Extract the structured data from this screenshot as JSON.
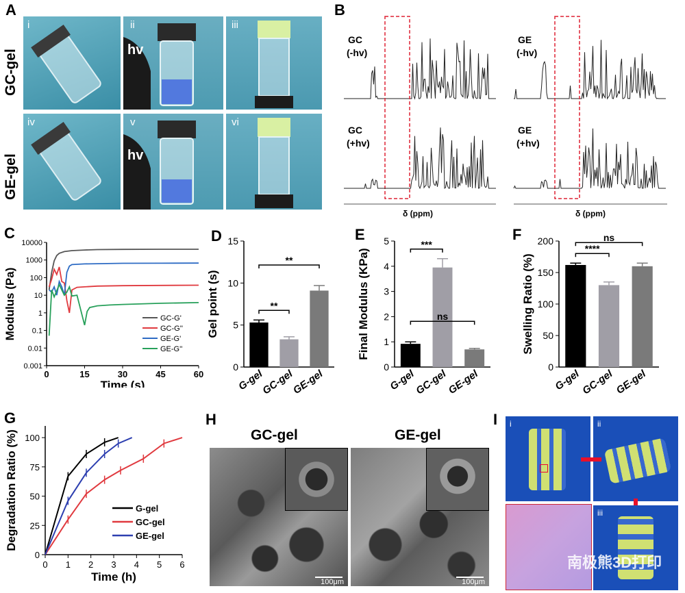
{
  "panels": {
    "A": {
      "label": "A",
      "row_labels": [
        "GC-gel",
        "GE-gel"
      ],
      "sub_labels": [
        "i",
        "ii",
        "iii",
        "iv",
        "v",
        "vi"
      ],
      "hv_label": "hv"
    },
    "B": {
      "label": "B",
      "spectra_labels": {
        "gc_minus": [
          "GC",
          "(-hv)"
        ],
        "gc_plus": [
          "GC",
          "(+hv)"
        ],
        "ge_minus": [
          "GE",
          "(-hv)"
        ],
        "ge_plus": [
          "GE",
          "(+hv)"
        ]
      },
      "xlabel": "δ (ppm)"
    },
    "H": {
      "label": "H",
      "titles": [
        "GC-gel",
        "GE-gel"
      ],
      "scale": "100μm"
    },
    "I": {
      "label": "I",
      "sub_labels": [
        "i",
        "ii",
        "iii"
      ]
    }
  },
  "watermark": "南极熊3D打印",
  "chart_data": [
    {
      "panel": "C",
      "type": "line",
      "xlabel": "Time (s)",
      "ylabel": "Modulus (Pa)",
      "xlim": [
        0,
        60
      ],
      "xticks": [
        0,
        15,
        30,
        45,
        60
      ],
      "yscale": "log",
      "yticks_labels": [
        "0.001",
        "0.01",
        "0.1",
        "1",
        "10",
        "100",
        "1000",
        "10000"
      ],
      "legend_placement": "bottom-right",
      "series": [
        {
          "name": "GC-G'",
          "color": "#555555",
          "x": [
            1,
            2,
            3,
            4,
            5,
            7,
            10,
            15,
            20,
            30,
            45,
            60
          ],
          "y": [
            20,
            200,
            900,
            1800,
            2400,
            3000,
            3400,
            3700,
            3900,
            4000,
            4100,
            4100
          ]
        },
        {
          "name": "GC-G''",
          "color": "#e0393e",
          "x": [
            1,
            2,
            3,
            4,
            5,
            6,
            7,
            8,
            9,
            10,
            12,
            15,
            20,
            30,
            45,
            60
          ],
          "y": [
            30,
            80,
            300,
            150,
            400,
            60,
            50,
            5,
            1,
            20,
            28,
            30,
            33,
            35,
            36,
            37
          ]
        },
        {
          "name": "GE-G'",
          "color": "#2d6bc4",
          "x": [
            1,
            2,
            3,
            4,
            5,
            6,
            7,
            8,
            9,
            10,
            15,
            20,
            30,
            45,
            60
          ],
          "y": [
            20,
            15,
            30,
            10,
            60,
            30,
            10,
            200,
            450,
            550,
            600,
            620,
            650,
            660,
            670
          ]
        },
        {
          "name": "GE-G''",
          "color": "#27a05a",
          "x": [
            1,
            2,
            3,
            5,
            7,
            8,
            9,
            10,
            12,
            15,
            16,
            17,
            20,
            25,
            30,
            45,
            60
          ],
          "y": [
            0.05,
            20,
            8,
            40,
            10,
            15,
            30,
            9,
            10,
            0.2,
            1.2,
            2,
            2.5,
            2.8,
            3,
            3.5,
            3.8
          ]
        }
      ]
    },
    {
      "panel": "D",
      "type": "bar",
      "categories": [
        "G-gel",
        "GC-gel",
        "GE-gel"
      ],
      "values": [
        5.3,
        3.3,
        9.1
      ],
      "errors": [
        0.3,
        0.3,
        0.6
      ],
      "colors": [
        "#000000",
        "#a09ea6",
        "#7a7a7a"
      ],
      "ylabel": "Gel point (s)",
      "ylim": [
        0,
        15
      ],
      "yticks": [
        0,
        5,
        10,
        15
      ],
      "significance": [
        {
          "from": 0,
          "to": 1,
          "label": "**"
        },
        {
          "from": 0,
          "to": 2,
          "label": "**"
        }
      ]
    },
    {
      "panel": "E",
      "type": "bar",
      "categories": [
        "G-gel",
        "GC-gel",
        "GE-gel"
      ],
      "values": [
        0.92,
        3.95,
        0.7
      ],
      "errors": [
        0.08,
        0.35,
        0.04
      ],
      "colors": [
        "#000000",
        "#a09ea6",
        "#7a7a7a"
      ],
      "ylabel": "Final Modulus (KPa)",
      "ylim": [
        0,
        5
      ],
      "yticks": [
        0,
        1,
        2,
        3,
        4,
        5
      ],
      "significance": [
        {
          "from": 0,
          "to": 1,
          "label": "***"
        },
        {
          "from": 0,
          "to": 2,
          "label": "ns"
        }
      ]
    },
    {
      "panel": "F",
      "type": "bar",
      "categories": [
        "G-gel",
        "GC-gel",
        "GE-gel"
      ],
      "values": [
        162,
        130,
        160
      ],
      "errors": [
        3,
        5,
        5
      ],
      "colors": [
        "#000000",
        "#a09ea6",
        "#7a7a7a"
      ],
      "ylabel": "Swelling Ratio (%)",
      "ylim": [
        0,
        200
      ],
      "yticks": [
        0,
        50,
        100,
        150,
        200
      ],
      "significance": [
        {
          "from": 0,
          "to": 1,
          "label": "****"
        },
        {
          "from": 0,
          "to": 2,
          "label": "ns"
        }
      ]
    },
    {
      "panel": "G",
      "type": "line",
      "xlabel": "Time (h)",
      "ylabel": "Degradation Ratio (%)",
      "xlim": [
        0,
        6
      ],
      "xticks": [
        0,
        1,
        2,
        3,
        4,
        5,
        6
      ],
      "ylim": [
        0,
        110
      ],
      "yticks": [
        0,
        25,
        50,
        75,
        100
      ],
      "legend_placement": "bottom-right",
      "series": [
        {
          "name": "G-gel",
          "color": "#000000",
          "x": [
            0,
            1,
            1.8,
            2.6,
            3.2
          ],
          "y": [
            0,
            67,
            86,
            96,
            100
          ]
        },
        {
          "name": "GC-gel",
          "color": "#e0393e",
          "x": [
            0,
            1,
            1.8,
            2.6,
            3.3,
            4.3,
            5.2,
            6
          ],
          "y": [
            0,
            30,
            52,
            64,
            72,
            82,
            95,
            100
          ]
        },
        {
          "name": "GE-gel",
          "color": "#2d3fb0",
          "x": [
            0,
            1,
            1.8,
            2.6,
            3.2,
            3.8
          ],
          "y": [
            0,
            46,
            70,
            86,
            95,
            100
          ]
        }
      ]
    }
  ]
}
